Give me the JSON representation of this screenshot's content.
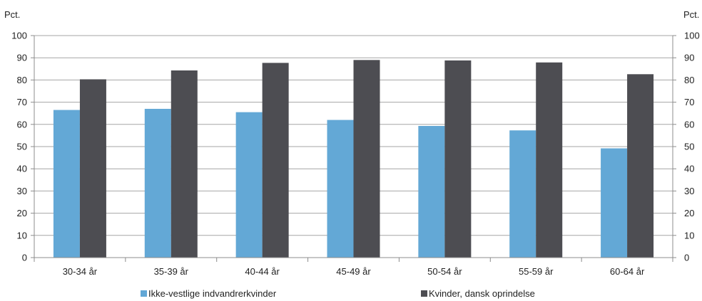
{
  "chart_data": {
    "type": "bar",
    "y_unit_left": "Pct.",
    "y_unit_right": "Pct.",
    "ylim": [
      0,
      100
    ],
    "yticks": [
      0,
      10,
      20,
      30,
      40,
      50,
      60,
      70,
      80,
      90,
      100
    ],
    "grid": true,
    "legend_position": "bottom",
    "categories": [
      "30-34 år",
      "35-39 år",
      "40-44 år",
      "45-49 år",
      "50-54 år",
      "55-59 år",
      "60-64 år"
    ],
    "series": [
      {
        "name": "Ikke-vestlige indvandrerkvinder",
        "color": "#63a8d6",
        "values": [
          66.5,
          67.0,
          65.5,
          62.0,
          59.3,
          57.3,
          49.2
        ]
      },
      {
        "name": "Kvinder, dansk oprindelse",
        "color": "#4d4d52",
        "values": [
          80.3,
          84.3,
          87.7,
          89.0,
          88.8,
          87.9,
          82.6
        ]
      }
    ]
  }
}
